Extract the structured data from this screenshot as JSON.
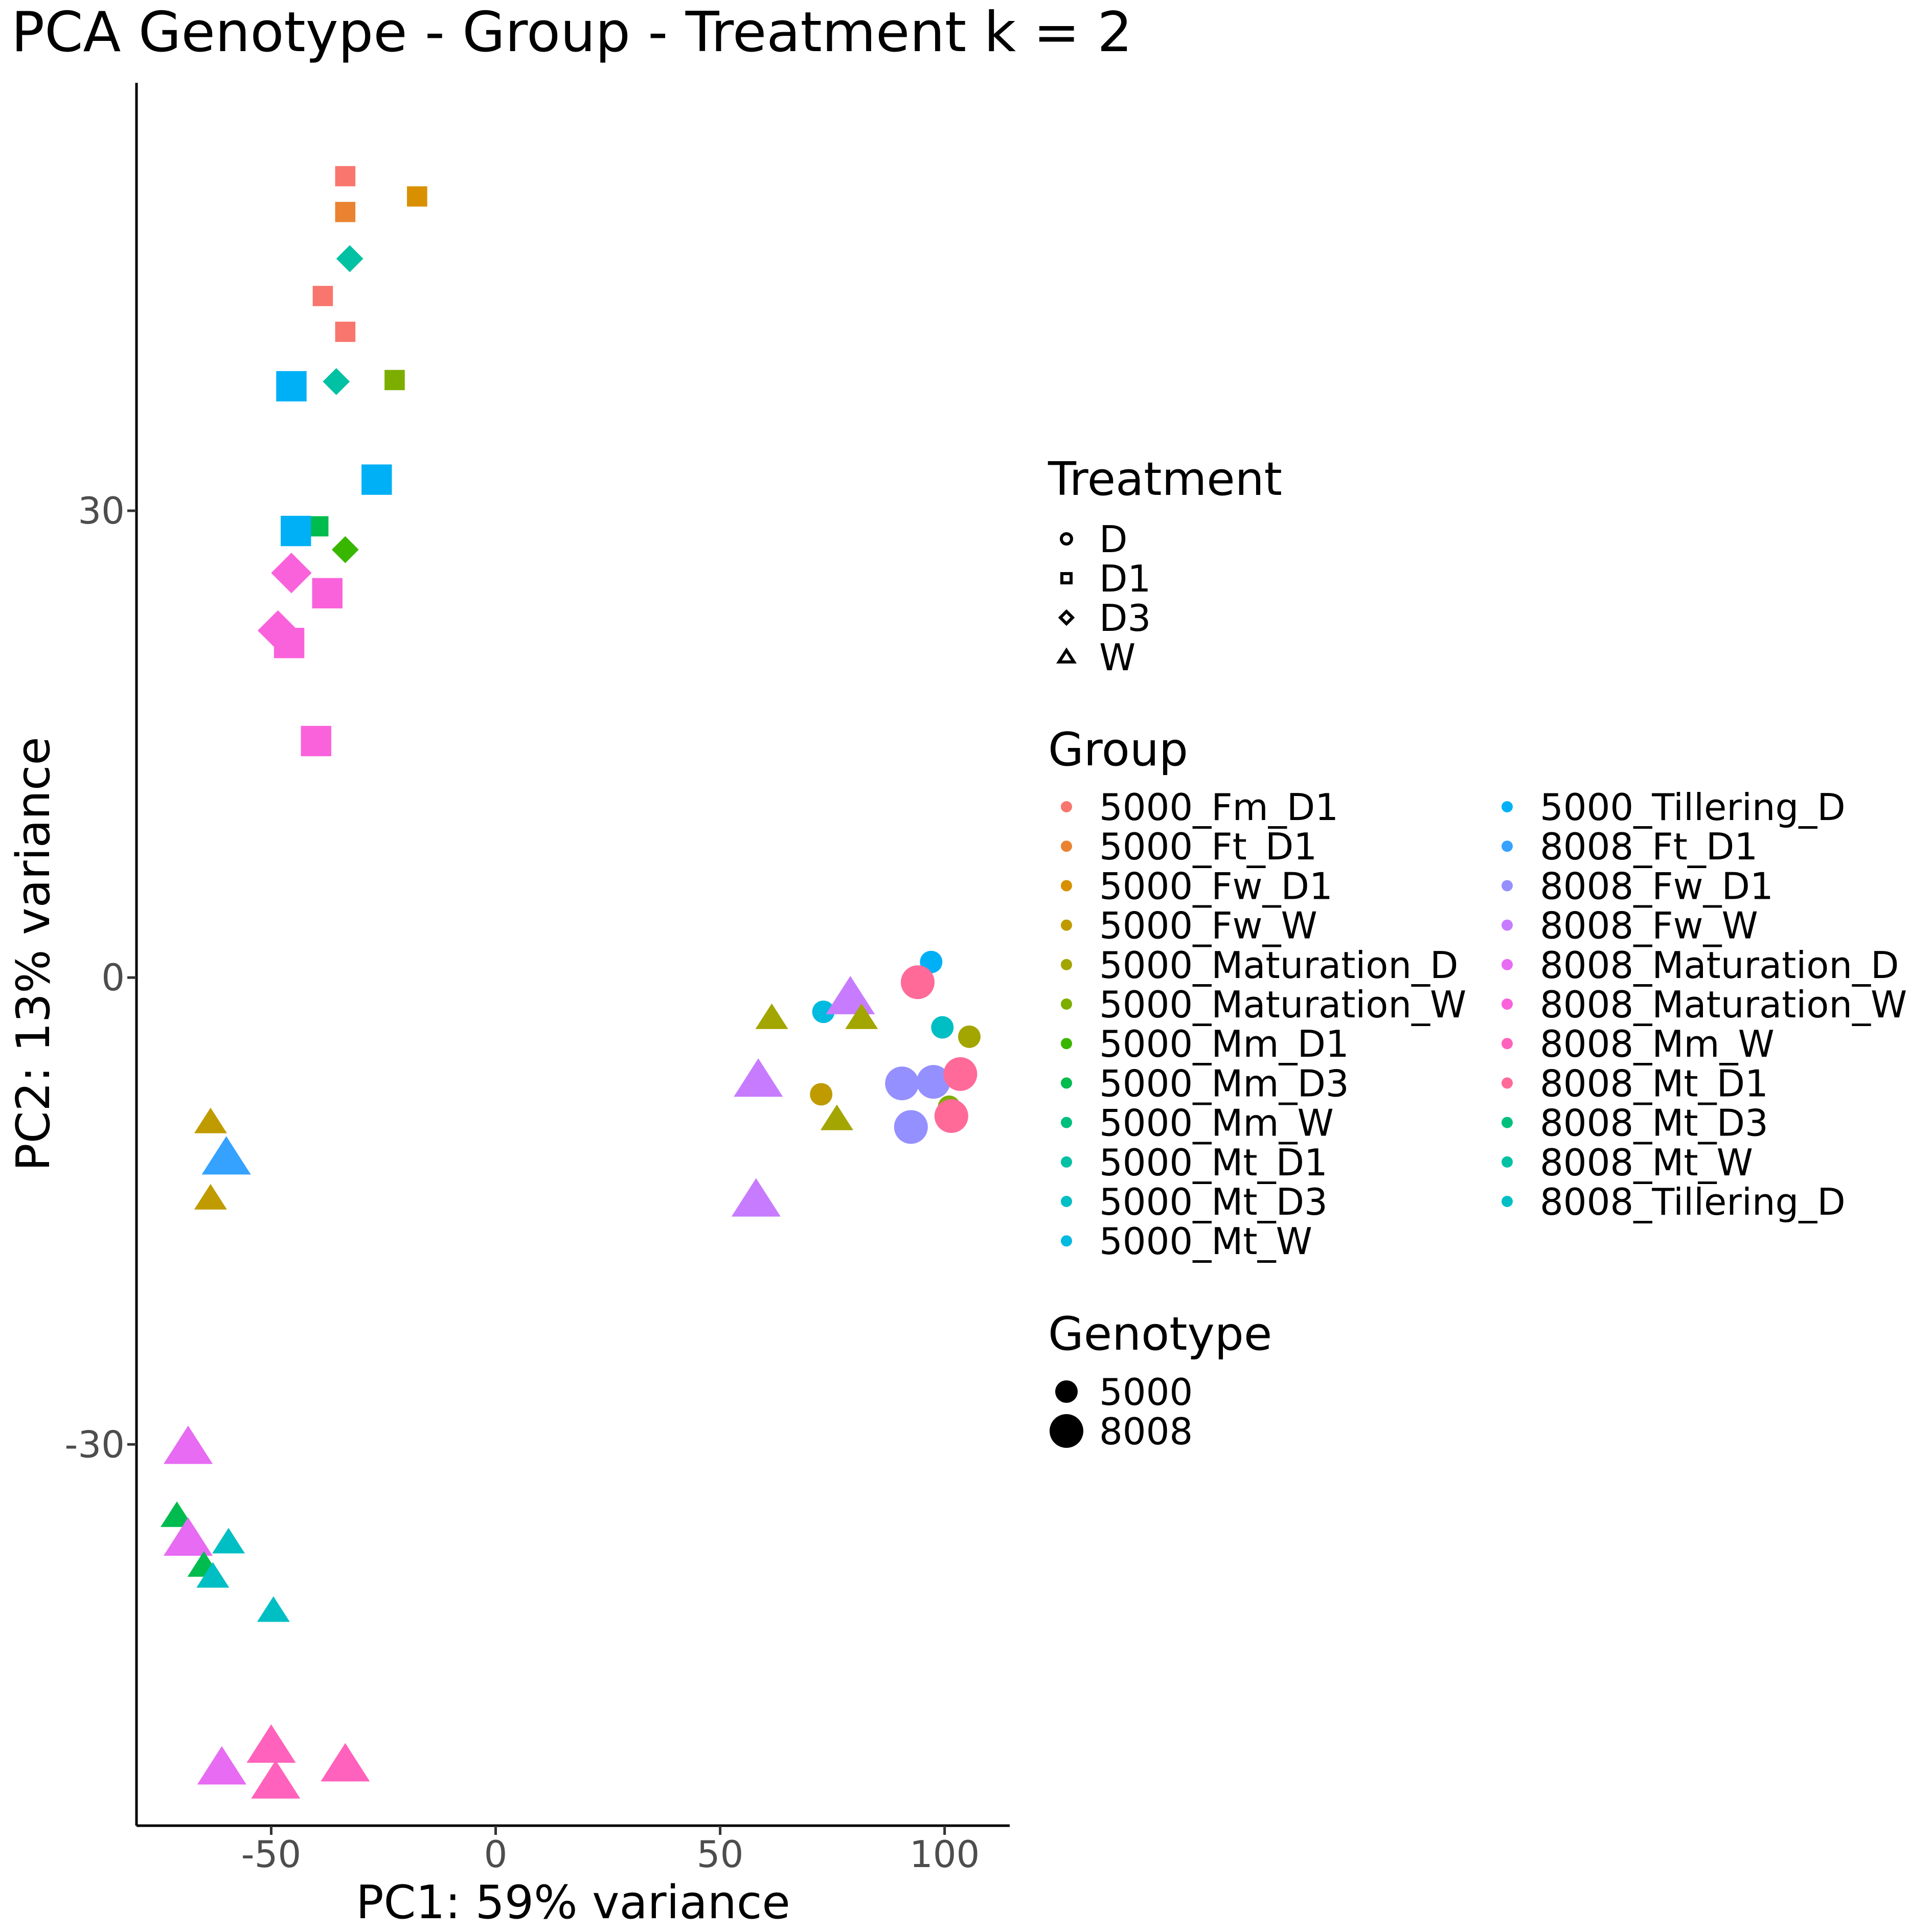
{
  "chart_data": {
    "type": "scatter",
    "title": "PCA Genotype - Group - Treatment k = 2",
    "xlabel": "PC1: 59% variance",
    "ylabel": "PC2: 13% variance",
    "xlim": [
      -80,
      114.5
    ],
    "ylim": [
      -54.5,
      57.5
    ],
    "x_ticks": [
      -50,
      0,
      50,
      100
    ],
    "x_tick_labels": [
      "-50",
      "0",
      "50",
      "100"
    ],
    "y_ticks": [
      -30,
      0,
      30
    ],
    "y_tick_labels": [
      "-30",
      "0",
      "30"
    ],
    "grid": false,
    "legend_position": "right",
    "legend_treatment": {
      "title": "Treatment",
      "items": [
        {
          "label": "D",
          "shape": "circle"
        },
        {
          "label": "D1",
          "shape": "square"
        },
        {
          "label": "D3",
          "shape": "diamond"
        },
        {
          "label": "W",
          "shape": "triangle"
        }
      ]
    },
    "legend_group": {
      "title": "Group",
      "items": [
        {
          "label": "5000_Fm_D1",
          "color": "#F8766D"
        },
        {
          "label": "5000_Ft_D1",
          "color": "#EA8331"
        },
        {
          "label": "5000_Fw_D1",
          "color": "#D89000"
        },
        {
          "label": "5000_Fw_W",
          "color": "#C09B00"
        },
        {
          "label": "5000_Maturation_D",
          "color": "#A3A500"
        },
        {
          "label": "5000_Maturation_W",
          "color": "#7CAE00"
        },
        {
          "label": "5000_Mm_D1",
          "color": "#39B600"
        },
        {
          "label": "5000_Mm_D3",
          "color": "#00BB4E"
        },
        {
          "label": "5000_Mm_W",
          "color": "#00BF7D"
        },
        {
          "label": "5000_Mt_D1",
          "color": "#00C1A3"
        },
        {
          "label": "5000_Mt_D3",
          "color": "#00BFC4"
        },
        {
          "label": "5000_Mt_W",
          "color": "#00BAE0"
        },
        {
          "label": "5000_Tillering_D",
          "color": "#00B0F6"
        },
        {
          "label": "8008_Ft_D1",
          "color": "#35A2FF"
        },
        {
          "label": "8008_Fw_D1",
          "color": "#9590FF"
        },
        {
          "label": "8008_Fw_W",
          "color": "#C77CFF"
        },
        {
          "label": "8008_Maturation_D",
          "color": "#E76BF3"
        },
        {
          "label": "8008_Maturation_W",
          "color": "#FA62DB"
        },
        {
          "label": "8008_Mm_W",
          "color": "#FF62BC"
        },
        {
          "label": "8008_Mt_D1",
          "color": "#FF6A98"
        },
        {
          "label": "8008_Mt_D3",
          "color": "#00BF7D"
        },
        {
          "label": "8008_Mt_W",
          "color": "#00C1A3"
        },
        {
          "label": "8008_Tillering_D",
          "color": "#00BFC4"
        }
      ]
    },
    "legend_genotype": {
      "title": "Genotype",
      "items": [
        {
          "label": "5000",
          "size": "small"
        },
        {
          "label": "8008",
          "size": "large"
        }
      ]
    },
    "points": [
      {
        "x": -33.5,
        "y": 51.5,
        "shape": "square",
        "color": "#F8766D",
        "genotype": "5000"
      },
      {
        "x": -33.5,
        "y": 49.2,
        "shape": "square",
        "color": "#EA8331",
        "genotype": "5000"
      },
      {
        "x": -17.5,
        "y": 50.2,
        "shape": "square",
        "color": "#D89000",
        "genotype": "5000"
      },
      {
        "x": -32.5,
        "y": 46.2,
        "shape": "diamond",
        "color": "#00C1A3",
        "genotype": "5000"
      },
      {
        "x": -38.5,
        "y": 43.8,
        "shape": "square",
        "color": "#F8766D",
        "genotype": "5000"
      },
      {
        "x": -33.5,
        "y": 41.5,
        "shape": "square",
        "color": "#F8766D",
        "genotype": "5000"
      },
      {
        "x": -22.5,
        "y": 38.4,
        "shape": "square",
        "color": "#7CAE00",
        "genotype": "5000"
      },
      {
        "x": -35.5,
        "y": 38.3,
        "shape": "diamond",
        "color": "#00C1A3",
        "genotype": "5000"
      },
      {
        "x": -45.5,
        "y": 38.0,
        "shape": "square",
        "color": "#00B0F6",
        "genotype": "8008"
      },
      {
        "x": -26.5,
        "y": 32.0,
        "shape": "square",
        "color": "#00B0F6",
        "genotype": "8008"
      },
      {
        "x": -39.5,
        "y": 29.0,
        "shape": "square",
        "color": "#00BB4E",
        "genotype": "5000"
      },
      {
        "x": -44.5,
        "y": 28.7,
        "shape": "square",
        "color": "#00B0F6",
        "genotype": "8008"
      },
      {
        "x": -33.5,
        "y": 27.5,
        "shape": "diamond",
        "color": "#39B600",
        "genotype": "5000"
      },
      {
        "x": -45.5,
        "y": 26.0,
        "shape": "diamond",
        "color": "#FA62DB",
        "genotype": "8008"
      },
      {
        "x": -37.5,
        "y": 24.7,
        "shape": "square",
        "color": "#FA62DB",
        "genotype": "8008"
      },
      {
        "x": -48.5,
        "y": 22.3,
        "shape": "diamond",
        "color": "#FA62DB",
        "genotype": "8008"
      },
      {
        "x": -46.0,
        "y": 21.5,
        "shape": "square",
        "color": "#FA62DB",
        "genotype": "8008"
      },
      {
        "x": -40.0,
        "y": 15.2,
        "shape": "square",
        "color": "#FA62DB",
        "genotype": "8008"
      },
      {
        "x": 97.0,
        "y": 1.0,
        "shape": "circle",
        "color": "#00B0F6",
        "genotype": "5000"
      },
      {
        "x": 94.0,
        "y": -0.3,
        "shape": "circle",
        "color": "#FF6A98",
        "genotype": "8008"
      },
      {
        "x": 73.0,
        "y": -2.2,
        "shape": "circle",
        "color": "#00BAE0",
        "genotype": "5000"
      },
      {
        "x": 79.0,
        "y": -1.3,
        "shape": "triangle",
        "color": "#C77CFF",
        "genotype": "8008"
      },
      {
        "x": 81.5,
        "y": -2.6,
        "shape": "triangle",
        "color": "#A3A500",
        "genotype": "5000"
      },
      {
        "x": 61.5,
        "y": -2.6,
        "shape": "triangle",
        "color": "#A3A500",
        "genotype": "5000"
      },
      {
        "x": 99.5,
        "y": -3.2,
        "shape": "circle",
        "color": "#00BFC4",
        "genotype": "5000"
      },
      {
        "x": 105.5,
        "y": -3.8,
        "shape": "circle",
        "color": "#A3A500",
        "genotype": "5000"
      },
      {
        "x": 58.5,
        "y": -6.6,
        "shape": "triangle",
        "color": "#C77CFF",
        "genotype": "8008"
      },
      {
        "x": 90.5,
        "y": -6.8,
        "shape": "circle",
        "color": "#9590FF",
        "genotype": "8008"
      },
      {
        "x": 97.5,
        "y": -6.7,
        "shape": "circle",
        "color": "#9590FF",
        "genotype": "8008"
      },
      {
        "x": 103.5,
        "y": -6.2,
        "shape": "circle",
        "color": "#FF6A98",
        "genotype": "8008"
      },
      {
        "x": 72.5,
        "y": -7.5,
        "shape": "circle",
        "color": "#C09B00",
        "genotype": "5000"
      },
      {
        "x": 101.0,
        "y": -8.3,
        "shape": "circle",
        "color": "#7CAE00",
        "genotype": "5000"
      },
      {
        "x": 101.5,
        "y": -8.9,
        "shape": "circle",
        "color": "#FF6A98",
        "genotype": "8008"
      },
      {
        "x": 92.5,
        "y": -9.6,
        "shape": "circle",
        "color": "#9590FF",
        "genotype": "8008"
      },
      {
        "x": 76.0,
        "y": -9.1,
        "shape": "triangle",
        "color": "#A3A500",
        "genotype": "5000"
      },
      {
        "x": -63.5,
        "y": -9.3,
        "shape": "triangle",
        "color": "#C09B00",
        "genotype": "5000"
      },
      {
        "x": -60.0,
        "y": -11.6,
        "shape": "triangle",
        "color": "#35A2FF",
        "genotype": "8008"
      },
      {
        "x": -63.5,
        "y": -14.2,
        "shape": "triangle",
        "color": "#C09B00",
        "genotype": "5000"
      },
      {
        "x": 58.0,
        "y": -14.3,
        "shape": "triangle",
        "color": "#C77CFF",
        "genotype": "8008"
      },
      {
        "x": -68.5,
        "y": -30.2,
        "shape": "triangle",
        "color": "#E76BF3",
        "genotype": "8008"
      },
      {
        "x": -71.0,
        "y": -34.6,
        "shape": "triangle",
        "color": "#00BB4E",
        "genotype": "5000"
      },
      {
        "x": -68.5,
        "y": -36.1,
        "shape": "triangle",
        "color": "#E76BF3",
        "genotype": "8008"
      },
      {
        "x": -59.5,
        "y": -36.3,
        "shape": "triangle",
        "color": "#00BFC4",
        "genotype": "5000"
      },
      {
        "x": -65.0,
        "y": -37.8,
        "shape": "triangle",
        "color": "#00BB4E",
        "genotype": "5000"
      },
      {
        "x": -63.0,
        "y": -38.5,
        "shape": "triangle",
        "color": "#00BFC4",
        "genotype": "5000"
      },
      {
        "x": -49.5,
        "y": -40.7,
        "shape": "triangle",
        "color": "#00BFC4",
        "genotype": "5000"
      },
      {
        "x": -50.0,
        "y": -49.4,
        "shape": "triangle",
        "color": "#FF62BC",
        "genotype": "8008"
      },
      {
        "x": -61.0,
        "y": -50.8,
        "shape": "triangle",
        "color": "#E76BF3",
        "genotype": "8008"
      },
      {
        "x": -33.5,
        "y": -50.6,
        "shape": "triangle",
        "color": "#FF62BC",
        "genotype": "8008"
      },
      {
        "x": -49.0,
        "y": -51.7,
        "shape": "triangle",
        "color": "#FF62BC",
        "genotype": "8008"
      }
    ]
  }
}
